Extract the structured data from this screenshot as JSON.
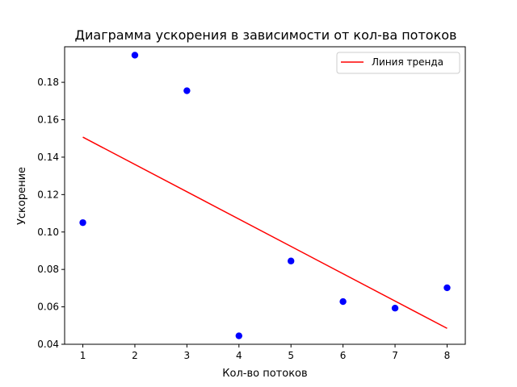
{
  "chart_data": {
    "type": "scatter",
    "title": "Диаграмма ускорения в зависимости от кол-ва потоков",
    "xlabel": "Кол-во потоков",
    "ylabel": "Ускорение",
    "xlim": [
      0.65,
      8.35
    ],
    "ylim": [
      0.04,
      0.199
    ],
    "xticks": [
      1,
      2,
      3,
      4,
      5,
      6,
      7,
      8
    ],
    "yticks": [
      0.04,
      0.06,
      0.08,
      0.1,
      0.12,
      0.14,
      0.16,
      0.18
    ],
    "ytick_labels": [
      "0.04",
      "0.06",
      "0.08",
      "0.10",
      "0.12",
      "0.14",
      "0.16",
      "0.18"
    ],
    "grid": false,
    "legend_position": "top-right",
    "series": [
      {
        "kind": "scatter",
        "color": "#0000ff",
        "x": [
          1,
          2,
          3,
          4,
          5,
          6,
          7,
          8
        ],
        "y": [
          0.105,
          0.1945,
          0.1755,
          0.0445,
          0.0845,
          0.0628,
          0.0593,
          0.0702
        ]
      },
      {
        "kind": "line",
        "name": "Линия тренда",
        "color": "#ff0000",
        "x": [
          1,
          8
        ],
        "y": [
          0.1507,
          0.0485
        ]
      }
    ]
  }
}
